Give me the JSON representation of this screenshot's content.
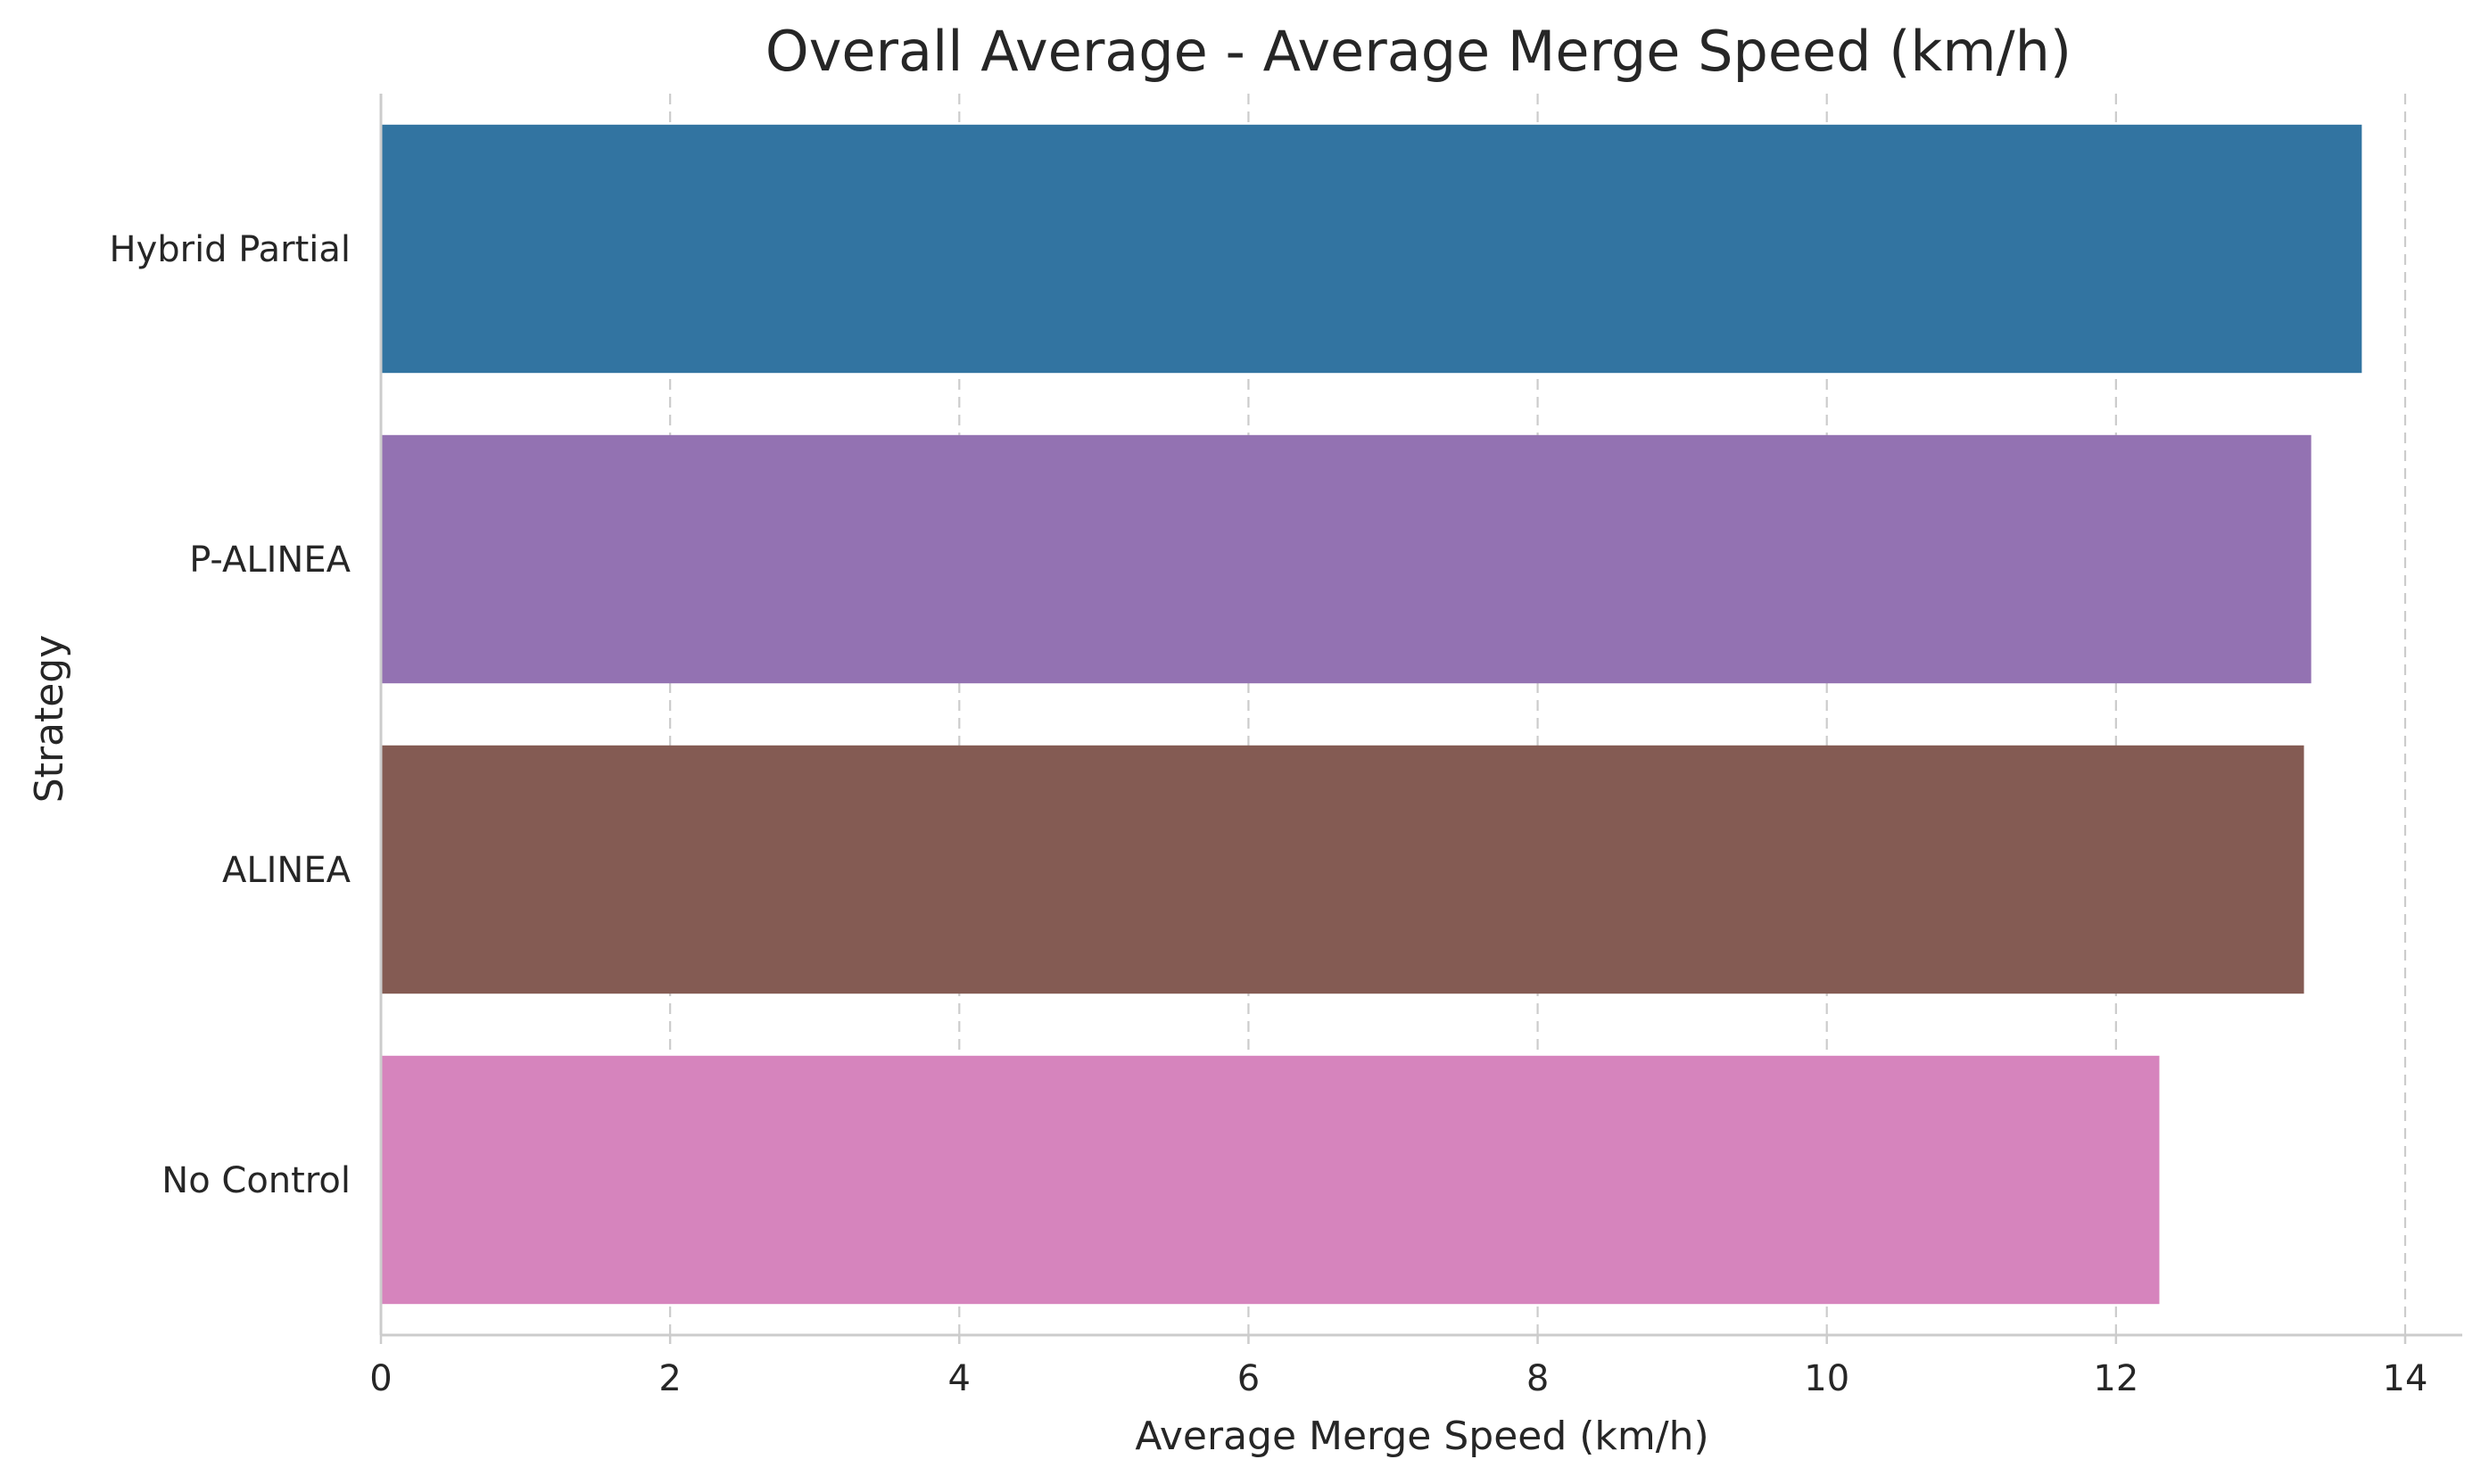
{
  "chart_data": {
    "type": "bar",
    "orientation": "horizontal",
    "title": "Overall Average - Average Merge Speed (km/h)",
    "xlabel": "Average Merge Speed (km/h)",
    "ylabel": "Strategy",
    "categories": [
      "Hybrid Partial",
      "P-ALINEA",
      "ALINEA",
      "No Control"
    ],
    "values": [
      13.7,
      13.35,
      13.3,
      12.3
    ],
    "colors": [
      "#3274a1",
      "#9372b2",
      "#845b53",
      "#d684bd"
    ],
    "xlim": [
      0,
      14.4
    ],
    "xticks": [
      0,
      2,
      4,
      6,
      8,
      10,
      12,
      14
    ],
    "xtick_labels": [
      "0",
      "2",
      "4",
      "6",
      "8",
      "10",
      "12",
      "14"
    ],
    "grid": "x, dashed",
    "legend": "none"
  }
}
